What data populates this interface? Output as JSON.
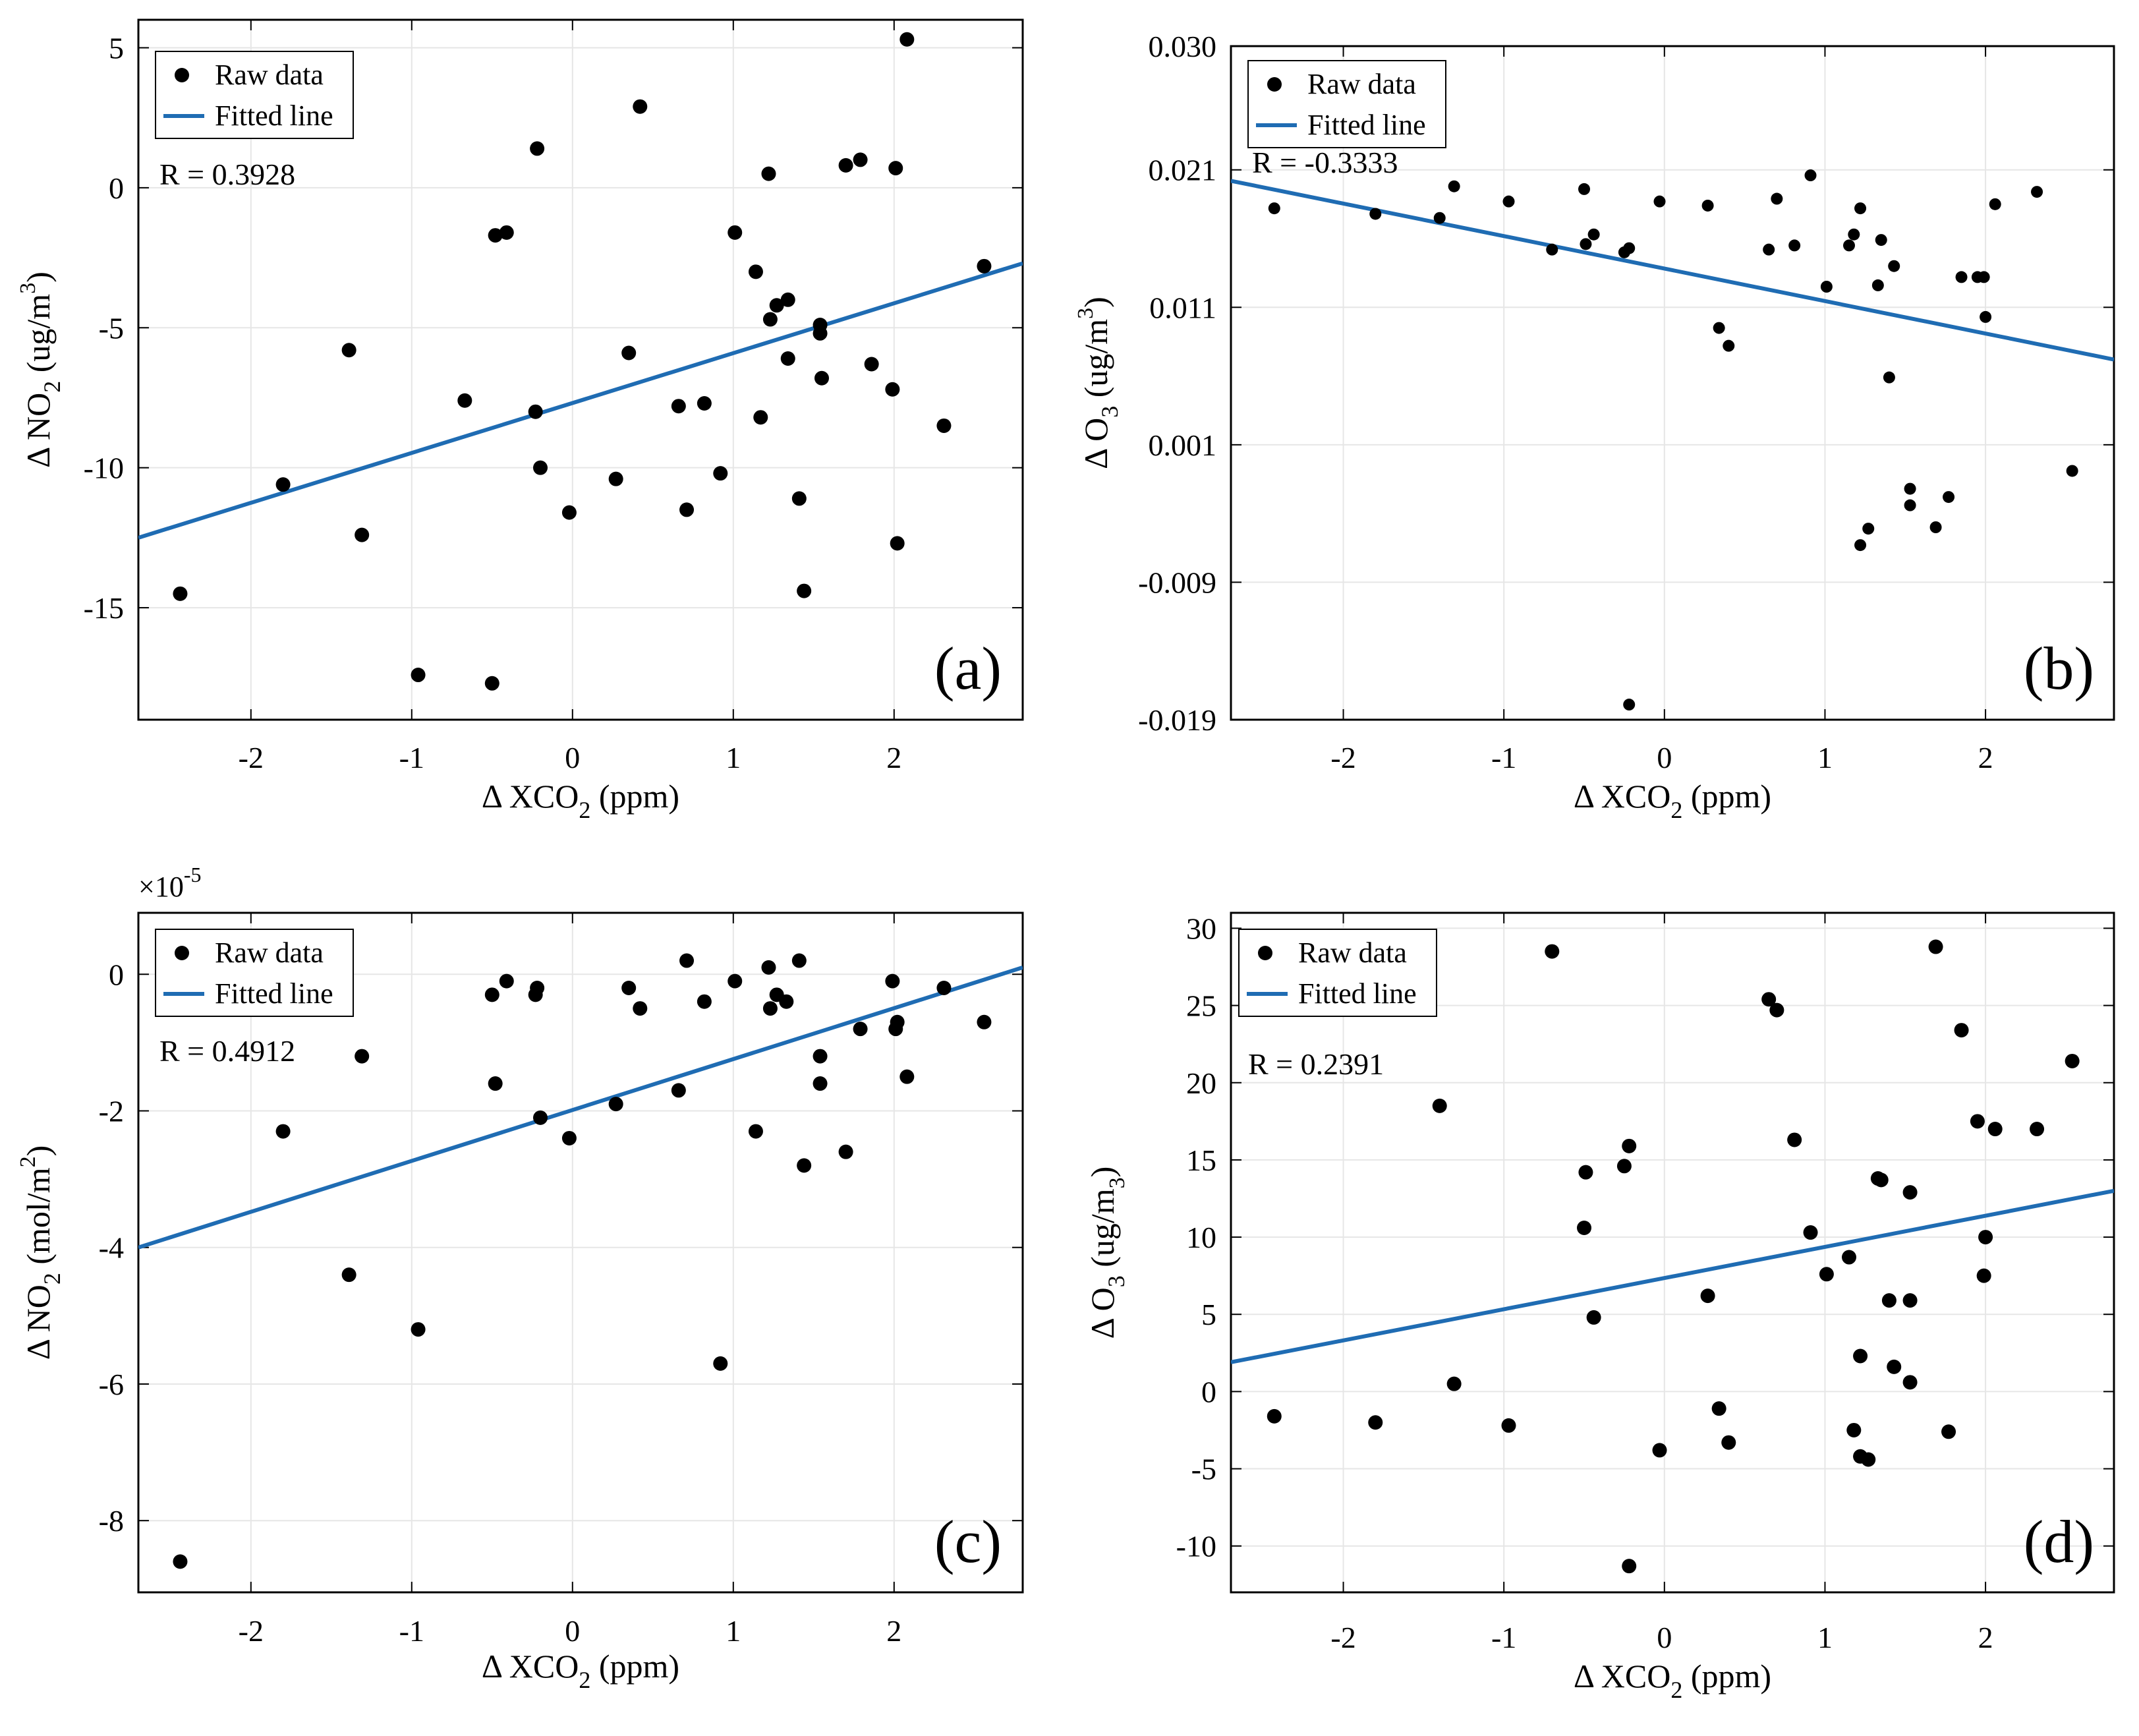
{
  "colors": {
    "points": "#000000",
    "fit_line": "#1f6cb3",
    "grid": "#e6e6e6",
    "axes": "#000000"
  },
  "chart_data": [
    {
      "type": "scatter",
      "panel": "(a)",
      "xlabel_base": "Δ XCO",
      "xlabel_sub": "2",
      "xlabel_unit": " (ppm)",
      "ylabel_base": "Δ NO",
      "ylabel_sub": "2",
      "ylabel_unit_pre": " (ug/m",
      "ylabel_sup": "3",
      "ylabel_unit_post": ")",
      "xlim": [
        -2.7,
        2.8
      ],
      "ylim": [
        -19,
        6
      ],
      "xticks": [
        -2,
        -1,
        0,
        1,
        2
      ],
      "yticks": [
        5,
        0,
        -5,
        -10,
        -15
      ],
      "legend": {
        "points": "Raw data",
        "line": "Fitted line"
      },
      "r_text": "R = 0.3928",
      "fit": {
        "x": [
          -2.7,
          2.8
        ],
        "y": [
          -12.5,
          -2.7
        ]
      },
      "points": [
        [
          -2.44,
          -14.5
        ],
        [
          -1.8,
          -10.6
        ],
        [
          -1.39,
          -5.8
        ],
        [
          -1.31,
          -12.4
        ],
        [
          -0.96,
          -17.4
        ],
        [
          -0.67,
          -7.6
        ],
        [
          -0.5,
          -17.7
        ],
        [
          -0.48,
          -1.7
        ],
        [
          -0.41,
          -1.6
        ],
        [
          -0.23,
          -8
        ],
        [
          -0.22,
          1.4
        ],
        [
          -0.2,
          -10
        ],
        [
          -0.02,
          -11.6
        ],
        [
          0.27,
          -10.4
        ],
        [
          0.35,
          -5.9
        ],
        [
          0.42,
          2.9
        ],
        [
          0.66,
          -7.8
        ],
        [
          0.71,
          -11.5
        ],
        [
          0.82,
          -7.7
        ],
        [
          0.92,
          -10.2
        ],
        [
          1.01,
          -1.6
        ],
        [
          1.14,
          -3
        ],
        [
          1.17,
          -8.2
        ],
        [
          1.22,
          0.5
        ],
        [
          1.23,
          -4.7
        ],
        [
          1.27,
          -4.2
        ],
        [
          1.34,
          -4
        ],
        [
          1.34,
          -6.1
        ],
        [
          1.41,
          -11.1
        ],
        [
          1.44,
          -14.4
        ],
        [
          1.54,
          -4.9
        ],
        [
          1.54,
          -5.2
        ],
        [
          1.55,
          -6.8
        ],
        [
          1.7,
          0.8
        ],
        [
          1.79,
          1
        ],
        [
          1.86,
          -6.3
        ],
        [
          1.99,
          -7.2
        ],
        [
          2.01,
          0.7
        ],
        [
          2.02,
          -12.7
        ],
        [
          2.08,
          5.3
        ],
        [
          2.31,
          -8.5
        ],
        [
          2.56,
          -2.8
        ]
      ]
    },
    {
      "type": "scatter",
      "panel": "(b)",
      "xlabel_base": "Δ XCO",
      "xlabel_sub": "2",
      "xlabel_unit": " (ppm)",
      "ylabel_base": "Δ O",
      "ylabel_sub": "3",
      "ylabel_unit_pre": " (ug/m",
      "ylabel_sup": "3",
      "ylabel_unit_post": ")",
      "xlim": [
        -2.7,
        2.8
      ],
      "ylim": [
        -0.019,
        0.03
      ],
      "xticks": [
        -2,
        -1,
        0,
        1,
        2
      ],
      "yticks": [
        0.03,
        0.021,
        0.011,
        0.001,
        -0.009,
        -0.019
      ],
      "ytick_labels": [
        "0.030",
        "0.021",
        "0.011",
        "0.001",
        "-0.009",
        "-0.019"
      ],
      "legend": {
        "points": "Raw data",
        "line": "Fitted line"
      },
      "r_text": "R = -0.3333",
      "fit": {
        "x": [
          -2.7,
          2.8
        ],
        "y": [
          0.0202,
          0.0072
        ]
      },
      "points": [
        [
          -2.43,
          0.0182
        ],
        [
          -1.8,
          0.0178
        ],
        [
          -1.4,
          0.0175
        ],
        [
          -1.31,
          0.0198
        ],
        [
          -0.97,
          0.0187
        ],
        [
          -0.7,
          0.0152
        ],
        [
          -0.5,
          0.0196
        ],
        [
          -0.49,
          0.0156
        ],
        [
          -0.44,
          0.0163
        ],
        [
          -0.25,
          0.015
        ],
        [
          -0.22,
          0.0153
        ],
        [
          -0.22,
          -0.0179
        ],
        [
          -0.03,
          0.0187
        ],
        [
          0.27,
          0.0184
        ],
        [
          0.34,
          0.0095
        ],
        [
          0.4,
          0.0082
        ],
        [
          0.65,
          0.0152
        ],
        [
          0.7,
          0.0189
        ],
        [
          0.81,
          0.0155
        ],
        [
          0.91,
          0.0206
        ],
        [
          1.01,
          0.0125
        ],
        [
          1.15,
          0.0155
        ],
        [
          1.18,
          0.0163
        ],
        [
          1.22,
          0.0182
        ],
        [
          1.22,
          -0.0063
        ],
        [
          1.27,
          -0.0051
        ],
        [
          1.33,
          0.0126
        ],
        [
          1.35,
          0.0159
        ],
        [
          1.4,
          0.0059
        ],
        [
          1.43,
          0.014
        ],
        [
          1.53,
          -0.0034
        ],
        [
          1.53,
          -0.0022
        ],
        [
          1.69,
          -0.005
        ],
        [
          1.77,
          -0.0028
        ],
        [
          1.85,
          0.0132
        ],
        [
          1.95,
          0.0132
        ],
        [
          1.99,
          0.0132
        ],
        [
          2.0,
          0.0103
        ],
        [
          2.06,
          0.0185
        ],
        [
          2.32,
          0.0194
        ],
        [
          2.54,
          -0.0009
        ]
      ]
    },
    {
      "type": "scatter",
      "panel": "(c)",
      "xlabel_base": "Δ XCO",
      "xlabel_sub": "2",
      "xlabel_unit": " (ppm)",
      "ylabel_base": "Δ NO",
      "ylabel_sub": "2",
      "ylabel_unit_pre": " (mol/m",
      "ylabel_sup": "2",
      "ylabel_unit_post": ")",
      "exponent_base": "×10",
      "exponent_power": "-5",
      "xlim": [
        -2.7,
        2.8
      ],
      "ylim": [
        -9.05,
        0.9
      ],
      "xticks": [
        -2,
        -1,
        0,
        1,
        2
      ],
      "yticks": [
        0,
        -2,
        -4,
        -6,
        -8
      ],
      "legend": {
        "points": "Raw data",
        "line": "Fitted line"
      },
      "r_text": "R = 0.4912",
      "fit": {
        "x": [
          -2.7,
          2.8
        ],
        "y": [
          -4.0,
          0.1
        ]
      },
      "points": [
        [
          -2.44,
          -8.6
        ],
        [
          -1.8,
          -2.3
        ],
        [
          -1.39,
          -4.4
        ],
        [
          -1.31,
          -1.2
        ],
        [
          -0.96,
          -5.2
        ],
        [
          -0.5,
          -0.3
        ],
        [
          -0.48,
          -1.6
        ],
        [
          -0.41,
          -0.1
        ],
        [
          -0.23,
          -0.3
        ],
        [
          -0.22,
          -0.2
        ],
        [
          -0.2,
          -2.1
        ],
        [
          -0.02,
          -2.4
        ],
        [
          0.27,
          -1.9
        ],
        [
          0.35,
          -0.2
        ],
        [
          0.42,
          -0.5
        ],
        [
          0.66,
          -1.7
        ],
        [
          0.71,
          0.2
        ],
        [
          0.82,
          -0.4
        ],
        [
          0.92,
          -5.7
        ],
        [
          1.01,
          -0.1
        ],
        [
          1.14,
          -2.3
        ],
        [
          1.22,
          0.1
        ],
        [
          1.23,
          -0.5
        ],
        [
          1.27,
          -0.3
        ],
        [
          1.33,
          -0.4
        ],
        [
          1.41,
          0.2
        ],
        [
          1.44,
          -2.8
        ],
        [
          1.54,
          -1.2
        ],
        [
          1.54,
          -1.6
        ],
        [
          1.7,
          -2.6
        ],
        [
          1.79,
          -0.8
        ],
        [
          1.99,
          -0.1
        ],
        [
          2.01,
          -0.8
        ],
        [
          2.02,
          -0.7
        ],
        [
          2.08,
          -1.5
        ],
        [
          2.31,
          -0.2
        ],
        [
          2.56,
          -0.7
        ]
      ]
    },
    {
      "type": "scatter",
      "panel": "(d)",
      "xlabel_base": "Δ XCO",
      "xlabel_sub": "2",
      "xlabel_unit": " (ppm)",
      "ylabel_base": "Δ O",
      "ylabel_sub": "3",
      "ylabel_unit_pre": " (ug/m",
      "ylabel_sub2": "3",
      "ylabel_unit_post": ")",
      "xlim": [
        -2.7,
        2.8
      ],
      "ylim": [
        -13,
        31
      ],
      "xticks": [
        -2,
        -1,
        0,
        1,
        2
      ],
      "yticks": [
        30,
        25,
        20,
        15,
        10,
        5,
        0,
        -5,
        -10
      ],
      "legend": {
        "points": "Raw data",
        "line": "Fitted line"
      },
      "r_text": "R = 0.2391",
      "fit": {
        "x": [
          -2.7,
          2.8
        ],
        "y": [
          1.9,
          13.0
        ]
      },
      "points": [
        [
          -2.43,
          -1.6
        ],
        [
          -1.8,
          -2
        ],
        [
          -1.4,
          18.5
        ],
        [
          -1.31,
          0.5
        ],
        [
          -0.97,
          -2.2
        ],
        [
          -0.7,
          28.5
        ],
        [
          -0.5,
          10.6
        ],
        [
          -0.49,
          14.2
        ],
        [
          -0.44,
          4.8
        ],
        [
          -0.25,
          14.6
        ],
        [
          -0.22,
          15.9
        ],
        [
          -0.22,
          -11.3
        ],
        [
          -0.03,
          -3.8
        ],
        [
          0.27,
          6.2
        ],
        [
          0.34,
          -1.1
        ],
        [
          0.4,
          -3.3
        ],
        [
          0.65,
          25.4
        ],
        [
          0.7,
          24.7
        ],
        [
          0.81,
          16.3
        ],
        [
          0.91,
          10.3
        ],
        [
          1.01,
          7.6
        ],
        [
          1.15,
          8.7
        ],
        [
          1.18,
          -2.5
        ],
        [
          1.22,
          2.3
        ],
        [
          1.22,
          -4.2
        ],
        [
          1.27,
          -4.4
        ],
        [
          1.33,
          13.8
        ],
        [
          1.35,
          13.7
        ],
        [
          1.4,
          5.9
        ],
        [
          1.43,
          1.6
        ],
        [
          1.53,
          12.9
        ],
        [
          1.53,
          5.9
        ],
        [
          1.53,
          0.6
        ],
        [
          1.69,
          28.8
        ],
        [
          1.77,
          -2.6
        ],
        [
          1.85,
          23.4
        ],
        [
          1.95,
          17.5
        ],
        [
          1.99,
          7.5
        ],
        [
          2.0,
          10
        ],
        [
          2.06,
          17
        ],
        [
          2.32,
          17
        ],
        [
          2.54,
          21.4
        ]
      ]
    }
  ]
}
